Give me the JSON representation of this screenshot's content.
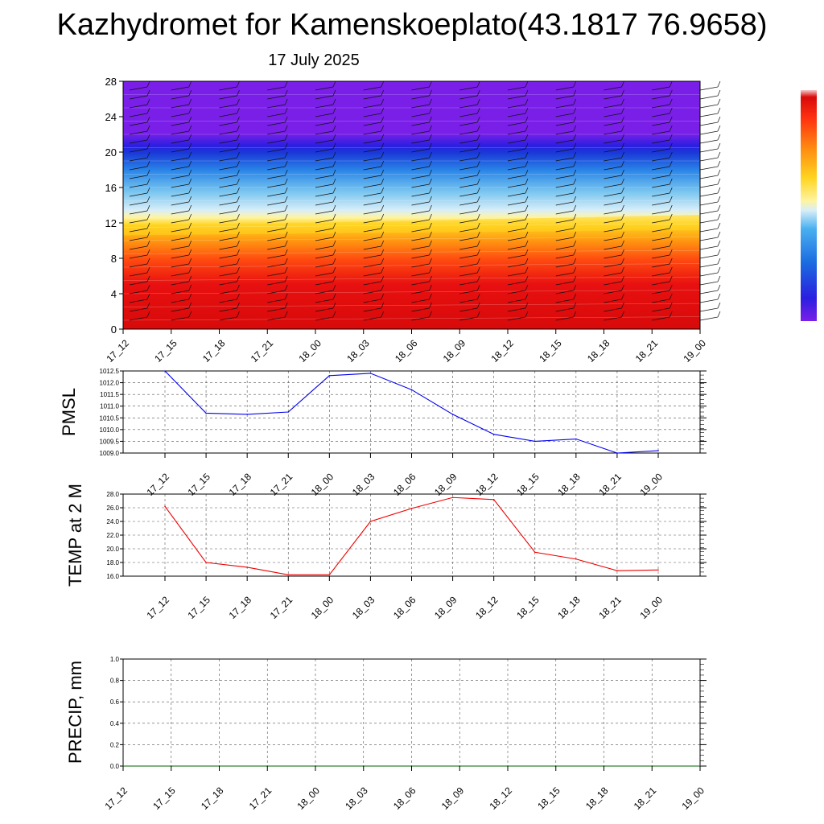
{
  "title": "Kazhydromet for Kamenskoeplato(43.1817 76.9658)",
  "subtitle": "17 July 2025",
  "chart_data": [
    {
      "type": "heatmap",
      "name": "vertical-cross-section",
      "x_categories": [
        "17_12",
        "17_15",
        "17_18",
        "17_21",
        "18_00",
        "18_03",
        "18_06",
        "18_09",
        "18_12",
        "18_15",
        "18_18",
        "18_21",
        "19_00"
      ],
      "ylim": [
        0,
        28
      ],
      "yticks": [
        0,
        4,
        8,
        12,
        16,
        20,
        24,
        28
      ],
      "colormap": [
        "#7a1fe8",
        "#2a1fe0",
        "#1a3ad8",
        "#2a86e8",
        "#7ec8f0",
        "#d8eef8",
        "#fff4a0",
        "#ffd420",
        "#ff9a10",
        "#ff4a10",
        "#e81010",
        "#d80a0a"
      ],
      "bands": [
        {
          "from": 0,
          "to": 6,
          "color": "#e81010"
        },
        {
          "from": 6,
          "to": 9,
          "color": "#ff4a10"
        },
        {
          "from": 9,
          "to": 11,
          "color": "#ff9a10"
        },
        {
          "from": 11,
          "to": 12.5,
          "color": "#ffd420"
        },
        {
          "from": 12.5,
          "to": 14,
          "color": "#d8eef8"
        },
        {
          "from": 14,
          "to": 17,
          "color": "#7ec8f0"
        },
        {
          "from": 17,
          "to": 19,
          "color": "#2a86e8"
        },
        {
          "from": 19,
          "to": 22,
          "color": "#1a3ad8"
        },
        {
          "from": 22,
          "to": 28,
          "color": "#7a1fe8"
        }
      ]
    },
    {
      "type": "line",
      "ylabel": "PMSL",
      "color": "#0000ee",
      "x": [
        "17_12",
        "17_15",
        "17_18",
        "17_21",
        "18_00",
        "18_03",
        "18_06",
        "18_09",
        "18_12",
        "18_15",
        "18_18",
        "18_21",
        "19_00"
      ],
      "values": [
        1012.5,
        1010.7,
        1010.65,
        1010.75,
        1012.3,
        1012.4,
        1011.7,
        1010.65,
        1009.8,
        1009.5,
        1009.6,
        1009.0,
        1009.1
      ],
      "ylim": [
        1009.0,
        1012.5
      ],
      "yticks": [
        "1009.0",
        "1009.5",
        "1010.0",
        "1010.5",
        "1011.0",
        "1011.5",
        "1012.0",
        "1012.5"
      ],
      "grid": true
    },
    {
      "type": "line",
      "ylabel": "TEMP at 2 M",
      "color": "#ee0000",
      "x": [
        "17_12",
        "17_15",
        "17_18",
        "17_21",
        "18_00",
        "18_03",
        "18_06",
        "18_09",
        "18_12",
        "18_15",
        "18_18",
        "18_21",
        "19_00"
      ],
      "values": [
        26.2,
        18.0,
        17.3,
        16.2,
        16.2,
        24.0,
        25.9,
        27.5,
        27.2,
        19.5,
        18.5,
        16.8,
        16.9
      ],
      "ylim": [
        16.0,
        28.0
      ],
      "yticks": [
        "16.0",
        "18.0",
        "20.0",
        "22.0",
        "24.0",
        "26.0",
        "28.0"
      ],
      "grid": true
    },
    {
      "type": "line",
      "ylabel": "PRECIP, mm",
      "color": "#006400",
      "x": [
        "17_12",
        "17_15",
        "17_18",
        "17_21",
        "18_00",
        "18_03",
        "18_06",
        "18_09",
        "18_12",
        "18_15",
        "18_18",
        "18_21",
        "19_00"
      ],
      "values": [
        0,
        0,
        0,
        0,
        0,
        0,
        0,
        0,
        0,
        0,
        0,
        0,
        0
      ],
      "ylim": [
        0.0,
        1.0
      ],
      "yticks": [
        "0.0",
        "0.2",
        "0.4",
        "0.6",
        "0.8",
        "1.0"
      ],
      "grid": true
    }
  ]
}
